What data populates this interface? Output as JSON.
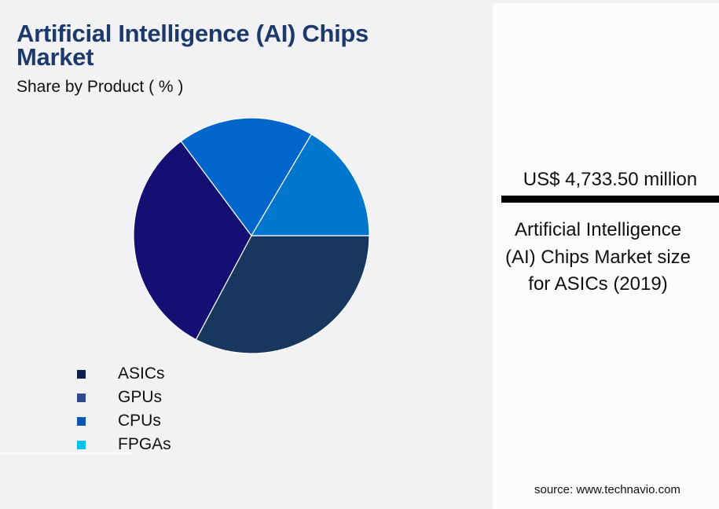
{
  "header": {
    "title": "Artificial Intelligence (AI) Chips Market",
    "subtitle": "Share by Product ( % )"
  },
  "chart_data": {
    "type": "pie",
    "title": "Artificial Intelligence (AI) Chips Market",
    "subtitle": "Share by Product ( % )",
    "categories": [
      "ASICs",
      "GPUs",
      "CPUs",
      "FPGAs"
    ],
    "values": [
      32.8,
      32.0,
      18.7,
      16.5
    ],
    "slice_colors": [
      "#17375e",
      "#150f74",
      "#0066cc",
      "#0077cc"
    ],
    "start_angle_deg": 0,
    "direction": "clockwise",
    "legend_position": "bottom-left",
    "data_labels": false
  },
  "legend": {
    "items": [
      {
        "label": "ASICs",
        "color": "#0f1f4d"
      },
      {
        "label": "GPUs",
        "color": "#2e4a8a"
      },
      {
        "label": "CPUs",
        "color": "#0a56b0"
      },
      {
        "label": "FPGAs",
        "color": "#00c0e8"
      }
    ]
  },
  "kpi": {
    "value": "US$ 4,733.50 million",
    "description": "Artificial Intelligence (AI) Chips Market size for ASICs (2019)"
  },
  "footer": {
    "source": "source: www.technavio.com"
  }
}
